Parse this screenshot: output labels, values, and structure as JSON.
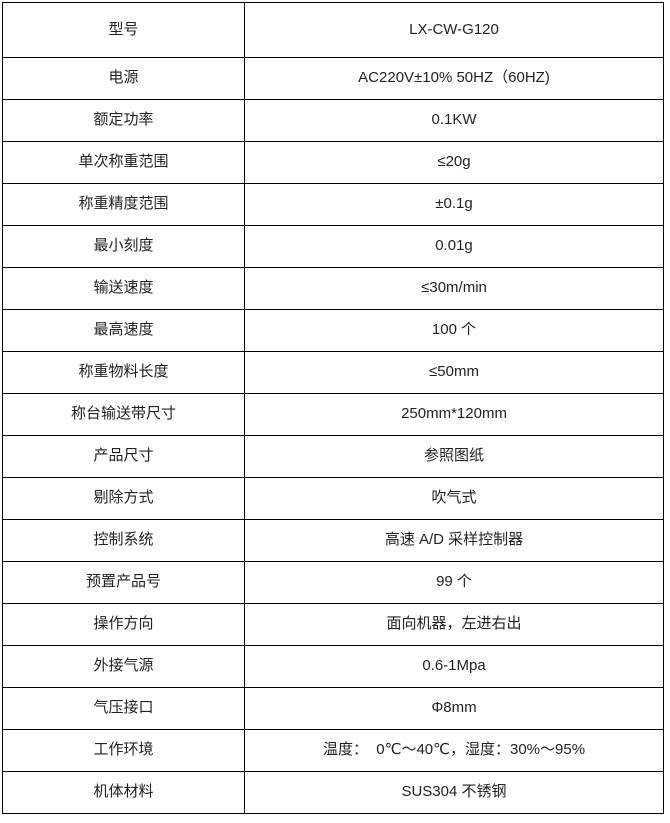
{
  "page": {
    "background": "#ffffff"
  },
  "table": {
    "border_color": "#000000",
    "text_color": "#222222",
    "columns": [
      "parameter",
      "value"
    ],
    "rows": [
      {
        "label": "型号",
        "value": "LX-CW-G120"
      },
      {
        "label": "电源",
        "value": "AC220V±10% 50HZ（60HZ)"
      },
      {
        "label": "额定功率",
        "value": "0.1KW"
      },
      {
        "label": "单次称重范围",
        "value": "≤20g"
      },
      {
        "label": "称重精度范围",
        "value": "±0.1g"
      },
      {
        "label": "最小刻度",
        "value": "0.01g"
      },
      {
        "label": "输送速度",
        "value": "≤30m/min"
      },
      {
        "label": "最高速度",
        "value": "100 个"
      },
      {
        "label": "称重物料长度",
        "value": "≤50mm"
      },
      {
        "label": "称台输送带尺寸",
        "value": "250mm*120mm"
      },
      {
        "label": "产品尺寸",
        "value": "参照图纸"
      },
      {
        "label": "剔除方式",
        "value": "吹气式"
      },
      {
        "label": "控制系统",
        "value": "高速 A/D 采样控制器"
      },
      {
        "label": "预置产品号",
        "value": "99 个"
      },
      {
        "label": "操作方向",
        "value": "面向机器，左进右出"
      },
      {
        "label": "外接气源",
        "value": "0.6-1Mpa"
      },
      {
        "label": "气压接口",
        "value": "Φ8mm"
      },
      {
        "label": "工作环境",
        "value": "温度：  0℃～40℃，湿度：30%～95%"
      },
      {
        "label": "机体材料",
        "value": "SUS304 不锈钢"
      }
    ]
  }
}
